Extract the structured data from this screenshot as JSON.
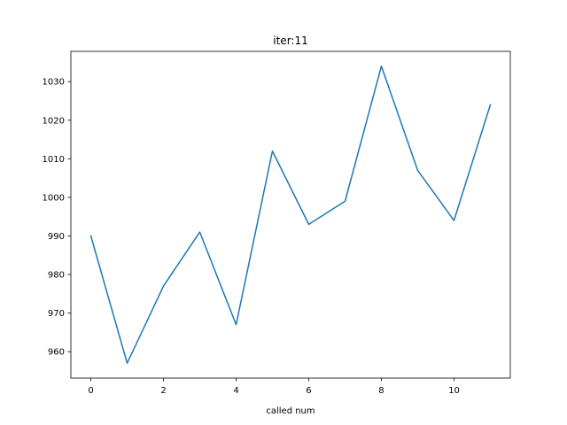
{
  "chart_data": {
    "type": "line",
    "title": "iter:11",
    "xlabel": "called num",
    "ylabel": "",
    "x": [
      0,
      1,
      2,
      3,
      4,
      5,
      6,
      7,
      8,
      9,
      10,
      11
    ],
    "series": [
      {
        "values": [
          990,
          957,
          977,
          991,
          967,
          1012,
          993,
          999,
          1034,
          1007,
          994,
          1024
        ],
        "color": "#1f77b4"
      }
    ],
    "xlim": [
      -0.55,
      11.55
    ],
    "ylim": [
      953.15,
      1037.85
    ],
    "xticks": [
      0,
      2,
      4,
      6,
      8,
      10
    ],
    "yticks": [
      960,
      970,
      980,
      990,
      1000,
      1010,
      1020,
      1030
    ],
    "grid": false,
    "legend": "none"
  }
}
